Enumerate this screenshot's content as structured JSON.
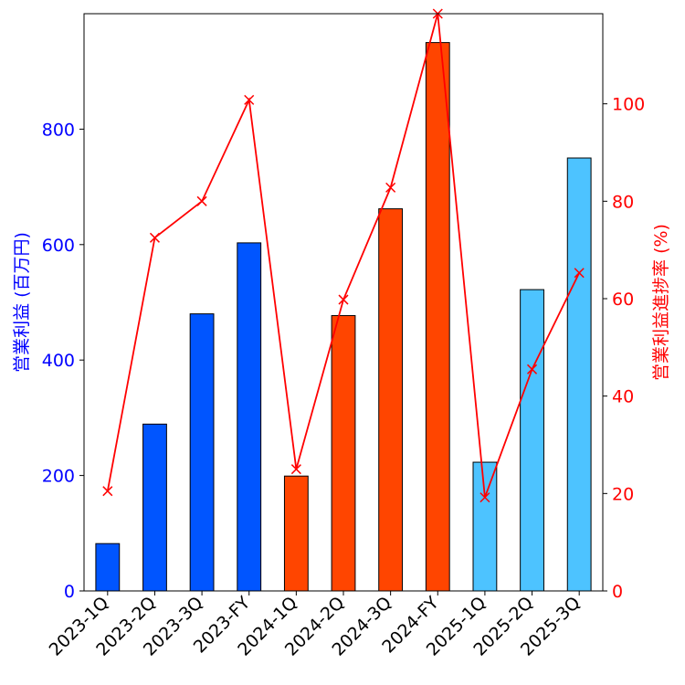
{
  "chart_data": {
    "type": "bar+line",
    "title": "",
    "categories": [
      "2023-1Q",
      "2023-2Q",
      "2023-3Q",
      "2023-FY",
      "2024-1Q",
      "2024-2Q",
      "2024-3Q",
      "2024-FY",
      "2025-1Q",
      "2025-2Q",
      "2025-3Q"
    ],
    "series": [
      {
        "name": "営業利益",
        "kind": "bar",
        "axis": "left",
        "values": [
          82,
          289,
          480,
          603,
          199,
          477,
          662,
          950,
          223,
          522,
          750
        ],
        "colors": [
          "#0055ff",
          "#0055ff",
          "#0055ff",
          "#0055ff",
          "#ff4500",
          "#ff4500",
          "#ff4500",
          "#ff4500",
          "#4dc3ff",
          "#4dc3ff",
          "#4dc3ff"
        ]
      },
      {
        "name": "営業利益進捗率",
        "kind": "line",
        "axis": "right",
        "marker": "x",
        "color": "#ff0000",
        "values": [
          20.5,
          72.5,
          80.0,
          100.8,
          25.0,
          59.8,
          82.8,
          118.5,
          19.2,
          45.5,
          65.3
        ]
      }
    ],
    "ylabel": "営業利益 (百万円)",
    "ylabel_right": "営業利益進捗率 (%)",
    "ylim": [
      0,
      1000
    ],
    "ylim_right": [
      0,
      118.5
    ],
    "yticks": [
      0,
      200,
      400,
      600,
      800
    ],
    "yticks_right": [
      0,
      20,
      40,
      60,
      80,
      100
    ],
    "ylabel_color": "#0000ff",
    "ylabel_right_color": "#ff0000",
    "grid": false,
    "legend": "none"
  }
}
